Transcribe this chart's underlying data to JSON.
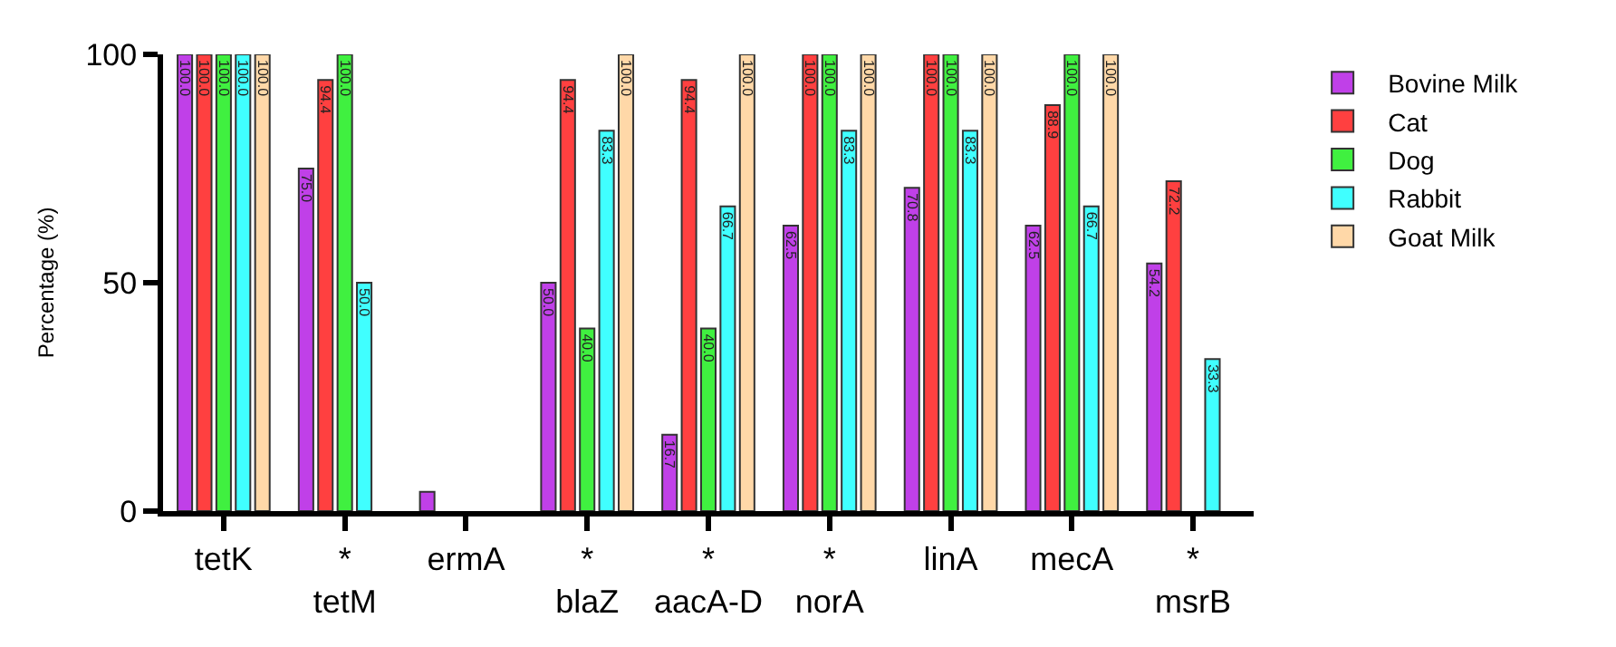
{
  "chart_data": {
    "type": "bar",
    "ylabel": "Percentage (%)",
    "categories": [
      "tetK",
      "*\ntetM",
      "ermA",
      "*\nblaZ",
      "*\naacA-D",
      "*\nnorA",
      "linA",
      "mecA",
      "*\nmsrB"
    ],
    "series": [
      {
        "name": "Bovine Milk",
        "color": "#c040e8",
        "values": [
          100,
          75.0,
          4.2,
          50.0,
          16.7,
          62.5,
          70.8,
          62.5,
          54.2
        ],
        "value_labels": [
          "100.0",
          "75.0",
          null,
          "50.0",
          "16.7",
          "62.5",
          "70.8",
          "62.5",
          "54.2"
        ]
      },
      {
        "name": "Cat",
        "color": "#ff4040",
        "values": [
          100,
          94.4,
          null,
          94.4,
          94.4,
          100,
          100,
          88.9,
          72.2
        ],
        "value_labels": [
          "100.0",
          "94.4",
          null,
          "94.4",
          "94.4",
          "100.0",
          "100.0",
          "88.9",
          "72.2"
        ]
      },
      {
        "name": "Dog",
        "color": "#40f040",
        "values": [
          100,
          100,
          null,
          40.0,
          40.0,
          100,
          100,
          100,
          null
        ],
        "value_labels": [
          "100.0",
          "100.0",
          null,
          "40.0",
          "40.0",
          "100.0",
          "100.0",
          "100.0",
          null
        ]
      },
      {
        "name": "Rabbit",
        "color": "#40ffff",
        "values": [
          100,
          50.0,
          null,
          83.3,
          66.7,
          83.3,
          83.3,
          66.7,
          33.3
        ],
        "value_labels": [
          "100.0",
          "50.0",
          null,
          "83.3",
          "66.7",
          "83.3",
          "83.3",
          "66.7",
          "33.3"
        ]
      },
      {
        "name": "Goat Milk",
        "color": "#ffd8a8",
        "values": [
          100,
          null,
          null,
          100,
          100,
          100,
          100,
          100,
          null
        ],
        "value_labels": [
          "100.0",
          null,
          null,
          "100.0",
          "100.0",
          "100.0",
          "100.0",
          "100.0",
          null
        ]
      }
    ],
    "ylim": [
      0,
      100
    ],
    "yticks": [
      0,
      50,
      100
    ],
    "legend": "right"
  }
}
